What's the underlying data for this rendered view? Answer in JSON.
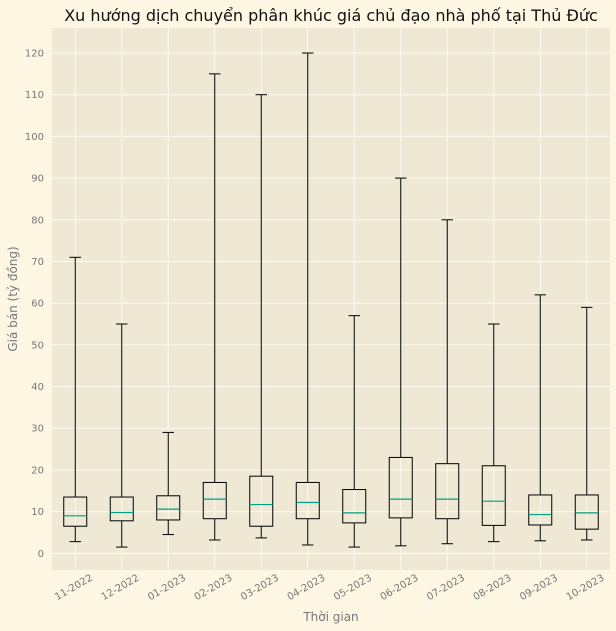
{
  "chart_data": {
    "type": "box",
    "title": "Xu hướng dịch chuyển phân khúc giá chủ đạo nhà phố tại Thủ Đức",
    "xlabel": "Thời gian",
    "ylabel": "Giá bán (tỷ đồng)",
    "ylim": [
      -4,
      126
    ],
    "yticks": [
      0,
      10,
      20,
      30,
      40,
      50,
      60,
      70,
      80,
      90,
      100,
      110,
      120
    ],
    "grid": true,
    "categories": [
      "11-2022",
      "12-2022",
      "01-2023",
      "02-2023",
      "03-2023",
      "04-2023",
      "05-2023",
      "06-2023",
      "07-2023",
      "08-2023",
      "09-2023",
      "10-2023"
    ],
    "boxes": [
      {
        "min": 2.8,
        "q1": 6.5,
        "median": 9.0,
        "q3": 13.5,
        "max": 71.0
      },
      {
        "min": 1.5,
        "q1": 7.8,
        "median": 9.8,
        "q3": 13.5,
        "max": 55.0
      },
      {
        "min": 4.5,
        "q1": 8.0,
        "median": 10.6,
        "q3": 13.8,
        "max": 29.0
      },
      {
        "min": 3.2,
        "q1": 8.3,
        "median": 13.0,
        "q3": 17.0,
        "max": 115.0
      },
      {
        "min": 3.7,
        "q1": 6.5,
        "median": 11.7,
        "q3": 18.5,
        "max": 110.0
      },
      {
        "min": 2.0,
        "q1": 8.3,
        "median": 12.2,
        "q3": 17.0,
        "max": 120.0
      },
      {
        "min": 1.5,
        "q1": 7.3,
        "median": 9.7,
        "q3": 15.3,
        "max": 57.0
      },
      {
        "min": 1.8,
        "q1": 8.5,
        "median": 13.0,
        "q3": 23.0,
        "max": 90.0
      },
      {
        "min": 2.3,
        "q1": 8.3,
        "median": 13.0,
        "q3": 21.5,
        "max": 80.0
      },
      {
        "min": 2.8,
        "q1": 6.7,
        "median": 12.5,
        "q3": 21.0,
        "max": 55.0
      },
      {
        "min": 3.0,
        "q1": 6.8,
        "median": 9.3,
        "q3": 14.0,
        "max": 62.0
      },
      {
        "min": 3.2,
        "q1": 5.8,
        "median": 9.7,
        "q3": 14.0,
        "max": 59.0
      }
    ],
    "colors": {
      "figure_bg": "#fdf6e3",
      "plot_bg": "#eee8d5",
      "grid": "#fdfaf0",
      "box": "#000000",
      "median": "#00a080",
      "tick_text": "#777777",
      "title_text": "#111111"
    }
  }
}
